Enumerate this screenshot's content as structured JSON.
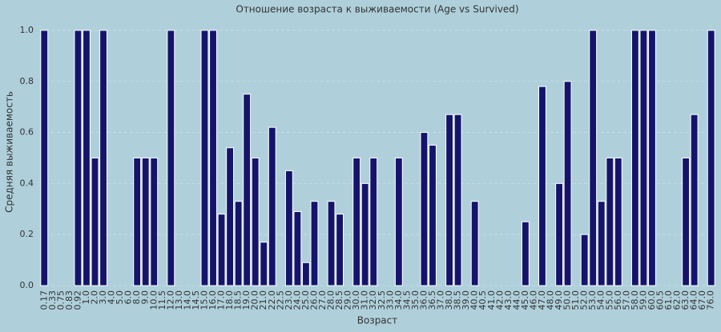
{
  "chart_data": {
    "type": "bar",
    "title": "Отношение возраста к выживаемости (Age vs Survived)",
    "x_label": "Возраст",
    "y_label": "Средняя выживаемость",
    "categories": [
      "0.17",
      "0.33",
      "0.75",
      "0.83",
      "0.92",
      "1.0",
      "2.0",
      "3.0",
      "4.0",
      "5.0",
      "6.0",
      "8.0",
      "9.0",
      "10.0",
      "11.5",
      "12.0",
      "13.0",
      "14.0",
      "14.5",
      "15.0",
      "16.0",
      "17.0",
      "18.0",
      "18.5",
      "19.0",
      "20.0",
      "21.0",
      "22.0",
      "22.5",
      "23.0",
      "24.0",
      "25.0",
      "26.0",
      "27.0",
      "28.0",
      "28.5",
      "29.0",
      "30.0",
      "31.0",
      "32.0",
      "32.5",
      "33.0",
      "34.0",
      "34.5",
      "35.0",
      "36.0",
      "36.5",
      "37.0",
      "38.0",
      "38.5",
      "39.0",
      "40.0",
      "40.5",
      "41.0",
      "42.0",
      "43.0",
      "44.0",
      "45.0",
      "46.0",
      "47.0",
      "48.0",
      "49.0",
      "50.0",
      "51.0",
      "52.0",
      "53.0",
      "54.0",
      "55.0",
      "56.0",
      "57.0",
      "58.0",
      "59.0",
      "60.0",
      "60.5",
      "61.0",
      "62.0",
      "63.0",
      "64.0",
      "67.0",
      "76.0"
    ],
    "values": [
      1,
      0,
      0,
      0,
      1,
      1,
      0.5,
      1,
      0,
      0,
      0,
      0.5,
      0.5,
      0.5,
      0,
      1,
      0,
      0,
      0,
      1,
      1,
      0.28,
      0.54,
      0.33,
      0.75,
      0.5,
      0.17,
      0.62,
      0,
      0.45,
      0.29,
      0.09,
      0.33,
      0,
      0.33,
      0.28,
      0,
      0.5,
      0.4,
      0.5,
      0,
      0,
      0.5,
      0,
      0,
      0.6,
      0.55,
      0,
      0.67,
      0.67,
      0,
      0.33,
      0,
      0,
      0,
      0,
      0,
      0.25,
      0,
      0.78,
      0,
      0.4,
      0.8,
      0,
      0.2,
      1,
      0.33,
      0.5,
      0.5,
      0,
      1,
      1,
      1,
      0,
      0,
      0,
      0.5,
      0.67,
      0,
      1
    ],
    "color": "#15146b",
    "ylim": [
      0,
      1.05
    ],
    "yticks": [
      {
        "value": 0,
        "label": "0.0"
      },
      0.2,
      0.4,
      0.6,
      0.8,
      {
        "value": 1,
        "label": "1.0"
      }
    ],
    "grid": true
  }
}
